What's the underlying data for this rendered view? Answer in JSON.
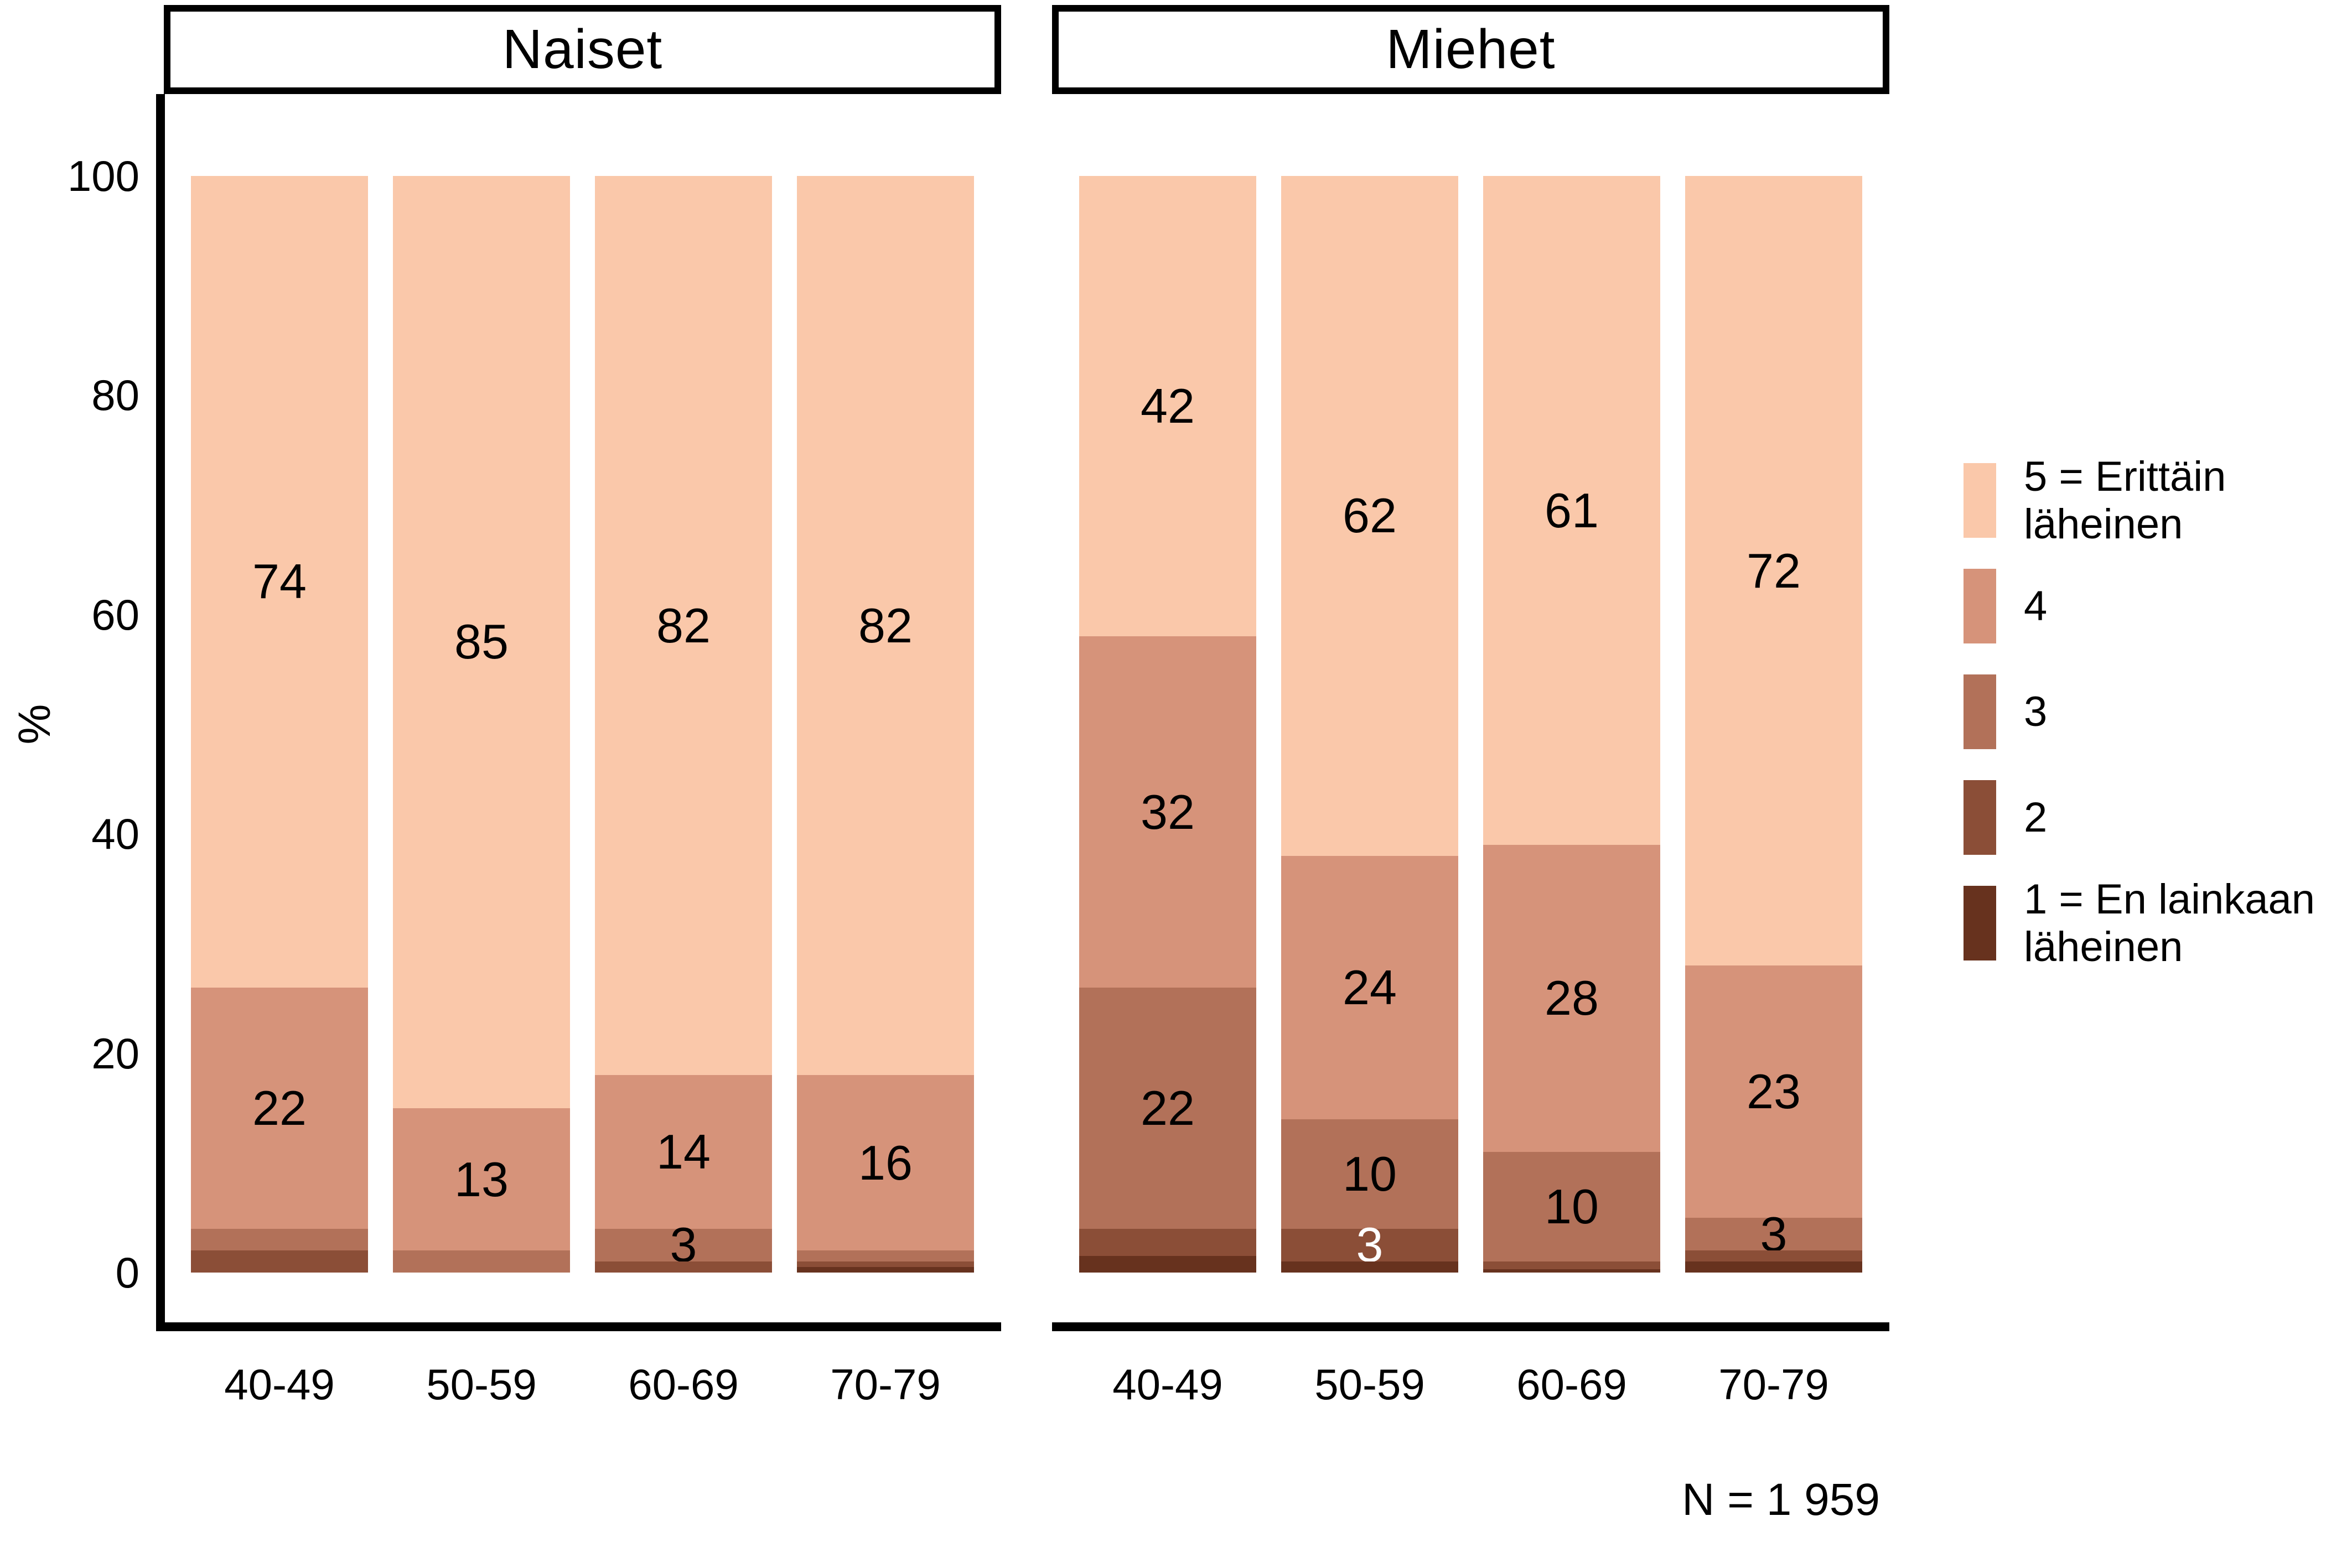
{
  "chart_data": {
    "type": "bar",
    "variant": "stacked-percent",
    "title": "",
    "ylabel": "%",
    "ylim": [
      0,
      100
    ],
    "yticks": [
      0,
      20,
      40,
      60,
      80,
      100
    ],
    "grid": false,
    "legend_position": "right",
    "categories": [
      "40-49",
      "50-59",
      "60-69",
      "70-79"
    ],
    "levels": [
      "1",
      "2",
      "3",
      "4",
      "5"
    ],
    "panels": [
      {
        "title": "Naiset",
        "bars": [
          {
            "category": "40-49",
            "segments": [
              {
                "level": "1",
                "value": 0,
                "label": ""
              },
              {
                "level": "2",
                "value": 2,
                "label": ""
              },
              {
                "level": "3",
                "value": 2,
                "label": ""
              },
              {
                "level": "4",
                "value": 22,
                "label": "22"
              },
              {
                "level": "5",
                "value": 74,
                "label": "74"
              }
            ]
          },
          {
            "category": "50-59",
            "segments": [
              {
                "level": "1",
                "value": 0,
                "label": ""
              },
              {
                "level": "2",
                "value": 0,
                "label": ""
              },
              {
                "level": "3",
                "value": 2,
                "label": ""
              },
              {
                "level": "4",
                "value": 13,
                "label": "13"
              },
              {
                "level": "5",
                "value": 85,
                "label": "85"
              }
            ]
          },
          {
            "category": "60-69",
            "segments": [
              {
                "level": "1",
                "value": 0,
                "label": ""
              },
              {
                "level": "2",
                "value": 1,
                "label": ""
              },
              {
                "level": "3",
                "value": 3,
                "label": "3"
              },
              {
                "level": "4",
                "value": 14,
                "label": "14"
              },
              {
                "level": "5",
                "value": 82,
                "label": "82"
              }
            ]
          },
          {
            "category": "70-79",
            "segments": [
              {
                "level": "1",
                "value": 0.5,
                "label": ""
              },
              {
                "level": "2",
                "value": 0.5,
                "label": ""
              },
              {
                "level": "3",
                "value": 1,
                "label": ""
              },
              {
                "level": "4",
                "value": 16,
                "label": "16"
              },
              {
                "level": "5",
                "value": 82,
                "label": "82"
              }
            ]
          }
        ]
      },
      {
        "title": "Miehet",
        "bars": [
          {
            "category": "40-49",
            "segments": [
              {
                "level": "1",
                "value": 1.5,
                "label": ""
              },
              {
                "level": "2",
                "value": 2.5,
                "label": ""
              },
              {
                "level": "3",
                "value": 22,
                "label": "22"
              },
              {
                "level": "4",
                "value": 32,
                "label": "32"
              },
              {
                "level": "5",
                "value": 42,
                "label": "42"
              }
            ]
          },
          {
            "category": "50-59",
            "segments": [
              {
                "level": "1",
                "value": 1,
                "label": ""
              },
              {
                "level": "2",
                "value": 3,
                "label": "3",
                "label_color": "#FFFFFF"
              },
              {
                "level": "3",
                "value": 10,
                "label": "10"
              },
              {
                "level": "4",
                "value": 24,
                "label": "24"
              },
              {
                "level": "5",
                "value": 62,
                "label": "62"
              }
            ]
          },
          {
            "category": "60-69",
            "segments": [
              {
                "level": "1",
                "value": 0.3,
                "label": ""
              },
              {
                "level": "2",
                "value": 0.7,
                "label": ""
              },
              {
                "level": "3",
                "value": 10,
                "label": "10"
              },
              {
                "level": "4",
                "value": 28,
                "label": "28"
              },
              {
                "level": "5",
                "value": 61,
                "label": "61"
              }
            ]
          },
          {
            "category": "70-79",
            "segments": [
              {
                "level": "1",
                "value": 1,
                "label": ""
              },
              {
                "level": "2",
                "value": 1,
                "label": ""
              },
              {
                "level": "3",
                "value": 3,
                "label": "3"
              },
              {
                "level": "4",
                "value": 23,
                "label": "23"
              },
              {
                "level": "5",
                "value": 72,
                "label": "72"
              }
            ]
          }
        ]
      }
    ],
    "legend": [
      {
        "level": "5",
        "color": "#FAC8AA",
        "lines": [
          "5 = Erittäin",
          "läheinen"
        ]
      },
      {
        "level": "4",
        "color": "#D6937A",
        "lines": [
          "4"
        ]
      },
      {
        "level": "3",
        "color": "#B27159",
        "lines": [
          "3"
        ]
      },
      {
        "level": "2",
        "color": "#8B4E37",
        "lines": [
          "2"
        ]
      },
      {
        "level": "1",
        "color": "#67321E",
        "lines": [
          "1 = En lainkaan",
          "läheinen"
        ]
      }
    ],
    "note": "N = 1 959"
  },
  "colors": {
    "level_5": "#FAC8AA",
    "level_4": "#D6937A",
    "level_3": "#B27159",
    "level_2": "#8B4E37",
    "level_1": "#67321E",
    "axis": "#000000",
    "text": "#000000",
    "background": "#FFFFFF",
    "label_on_dark": "#FFFFFF"
  }
}
